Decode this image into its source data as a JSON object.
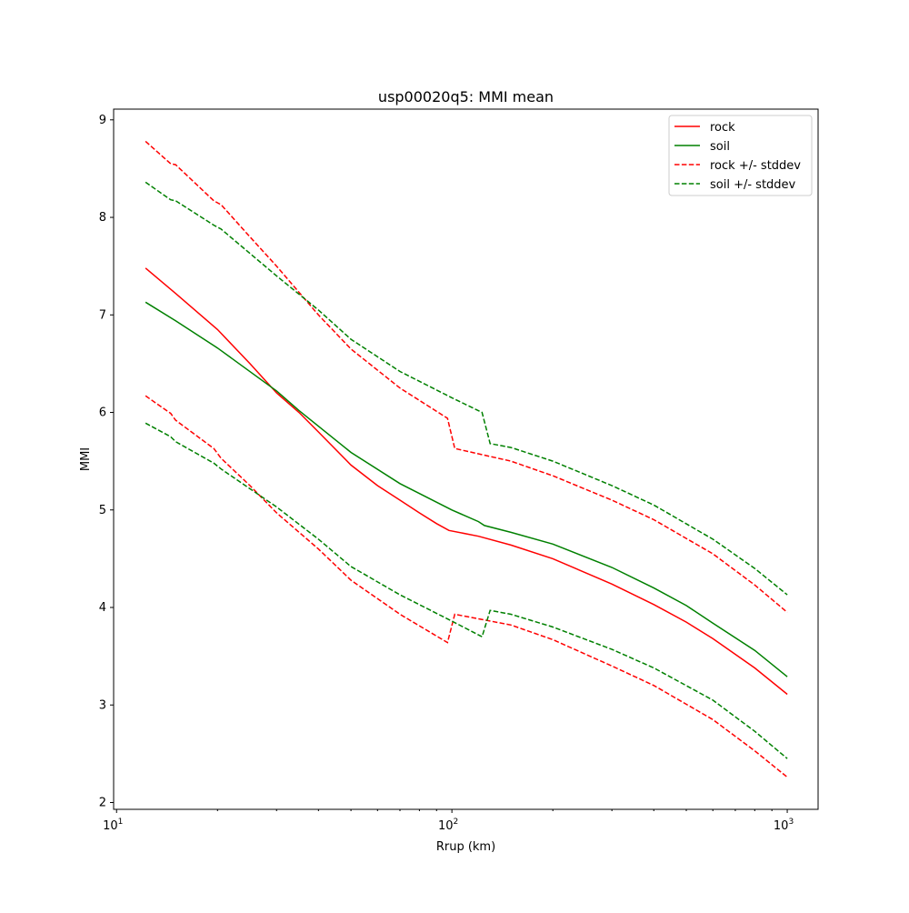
{
  "chart_data": {
    "type": "line",
    "title": "usp00020q5: MMI mean",
    "xlabel": "Rrup (km)",
    "ylabel": "MMI",
    "xscale": "log",
    "xlim": [
      9.8,
      1236
    ],
    "ylim": [
      1.93,
      9.11
    ],
    "xticks": [
      {
        "base": "10",
        "exp": "1",
        "value": 10
      },
      {
        "base": "10",
        "exp": "2",
        "value": 100
      },
      {
        "base": "10",
        "exp": "3",
        "value": 1000
      }
    ],
    "yticks": [
      "2",
      "3",
      "4",
      "5",
      "6",
      "7",
      "8",
      "9"
    ],
    "grid": false,
    "legend_position": "top-right",
    "series": [
      {
        "name": "rock",
        "color": "#ff0000",
        "dash": false,
        "points": [
          [
            12.2,
            7.48
          ],
          [
            15,
            7.22
          ],
          [
            20,
            6.85
          ],
          [
            25,
            6.5
          ],
          [
            30,
            6.2
          ],
          [
            35,
            6.0
          ],
          [
            40,
            5.8
          ],
          [
            50,
            5.46
          ],
          [
            60,
            5.25
          ],
          [
            70,
            5.1
          ],
          [
            80,
            4.97
          ],
          [
            90,
            4.86
          ],
          [
            98,
            4.79
          ],
          [
            120,
            4.73
          ],
          [
            150,
            4.64
          ],
          [
            200,
            4.5
          ],
          [
            300,
            4.24
          ],
          [
            400,
            4.03
          ],
          [
            500,
            3.85
          ],
          [
            600,
            3.68
          ],
          [
            800,
            3.38
          ],
          [
            1000,
            3.11
          ]
        ]
      },
      {
        "name": "soil",
        "color": "#008000",
        "dash": false,
        "points": [
          [
            12.2,
            7.13
          ],
          [
            15,
            6.94
          ],
          [
            20,
            6.66
          ],
          [
            30,
            6.22
          ],
          [
            35,
            6.02
          ],
          [
            50,
            5.59
          ],
          [
            70,
            5.27
          ],
          [
            100,
            5.0
          ],
          [
            120,
            4.88
          ],
          [
            125,
            4.84
          ],
          [
            150,
            4.77
          ],
          [
            200,
            4.65
          ],
          [
            300,
            4.41
          ],
          [
            400,
            4.2
          ],
          [
            500,
            4.02
          ],
          [
            600,
            3.84
          ],
          [
            800,
            3.56
          ],
          [
            1000,
            3.29
          ]
        ]
      },
      {
        "name": "rock +/- stddev",
        "color": "#ff0000",
        "dash": true,
        "points": [
          [
            12.2,
            8.78
          ],
          [
            14.5,
            8.55
          ],
          [
            15,
            8.54
          ],
          [
            19.5,
            8.17
          ],
          [
            20.5,
            8.13
          ],
          [
            25,
            7.8
          ],
          [
            30,
            7.5
          ],
          [
            40,
            7.0
          ],
          [
            50,
            6.65
          ],
          [
            70,
            6.25
          ],
          [
            97,
            5.94
          ],
          [
            102,
            5.63
          ],
          [
            150,
            5.5
          ],
          [
            200,
            5.35
          ],
          [
            300,
            5.1
          ],
          [
            400,
            4.9
          ],
          [
            600,
            4.55
          ],
          [
            800,
            4.23
          ],
          [
            1000,
            3.95
          ]
        ]
      },
      {
        "name": "rock +/- stddev",
        "color": "#ff0000",
        "dash": true,
        "legend": false,
        "points": [
          [
            12.2,
            6.17
          ],
          [
            14.5,
            5.99
          ],
          [
            15,
            5.92
          ],
          [
            19.5,
            5.63
          ],
          [
            20.5,
            5.53
          ],
          [
            25,
            5.25
          ],
          [
            30,
            4.97
          ],
          [
            40,
            4.6
          ],
          [
            50,
            4.28
          ],
          [
            70,
            3.93
          ],
          [
            97,
            3.64
          ],
          [
            102,
            3.93
          ],
          [
            150,
            3.82
          ],
          [
            200,
            3.67
          ],
          [
            300,
            3.4
          ],
          [
            400,
            3.2
          ],
          [
            600,
            2.85
          ],
          [
            800,
            2.53
          ],
          [
            1000,
            2.26
          ]
        ]
      },
      {
        "name": "soil +/- stddev",
        "color": "#008000",
        "dash": true,
        "points": [
          [
            12.2,
            8.36
          ],
          [
            14.5,
            8.18
          ],
          [
            15,
            8.17
          ],
          [
            19.5,
            7.92
          ],
          [
            20.5,
            7.88
          ],
          [
            30,
            7.4
          ],
          [
            40,
            7.05
          ],
          [
            50,
            6.75
          ],
          [
            70,
            6.42
          ],
          [
            100,
            6.15
          ],
          [
            123,
            6.0
          ],
          [
            130,
            5.68
          ],
          [
            150,
            5.64
          ],
          [
            200,
            5.5
          ],
          [
            300,
            5.25
          ],
          [
            400,
            5.05
          ],
          [
            600,
            4.7
          ],
          [
            800,
            4.4
          ],
          [
            1000,
            4.13
          ]
        ]
      },
      {
        "name": "soil +/- stddev",
        "color": "#008000",
        "dash": true,
        "legend": false,
        "points": [
          [
            12.2,
            5.89
          ],
          [
            14.5,
            5.75
          ],
          [
            15,
            5.7
          ],
          [
            19.5,
            5.48
          ],
          [
            20.5,
            5.42
          ],
          [
            30,
            5.03
          ],
          [
            40,
            4.7
          ],
          [
            50,
            4.42
          ],
          [
            70,
            4.13
          ],
          [
            100,
            3.86
          ],
          [
            123,
            3.7
          ],
          [
            130,
            3.97
          ],
          [
            150,
            3.93
          ],
          [
            200,
            3.8
          ],
          [
            300,
            3.57
          ],
          [
            400,
            3.38
          ],
          [
            600,
            3.05
          ],
          [
            800,
            2.73
          ],
          [
            1000,
            2.45
          ]
        ]
      }
    ]
  }
}
